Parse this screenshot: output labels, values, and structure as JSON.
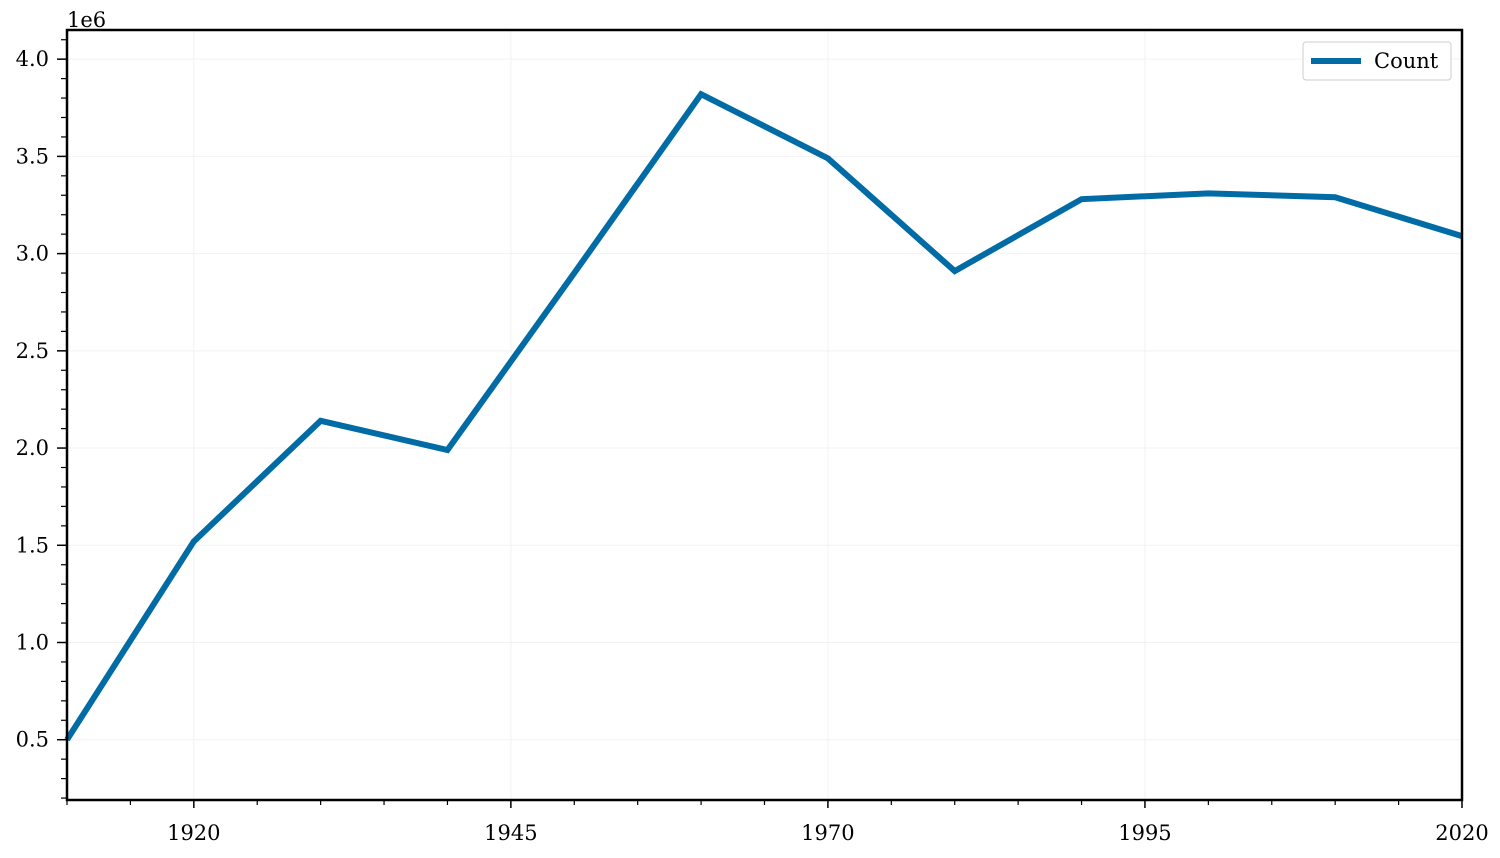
{
  "chart_data": {
    "type": "line",
    "title": "",
    "xlabel": "",
    "ylabel": "",
    "y_offset_label": "1e6",
    "x": [
      1910,
      1920,
      1930,
      1940,
      1950,
      1960,
      1970,
      1980,
      1990,
      2000,
      2010,
      2020
    ],
    "series": [
      {
        "name": "Count",
        "color": "#006ba4",
        "values": [
          0.5,
          1.52,
          2.14,
          1.99,
          2.9,
          3.82,
          3.49,
          2.91,
          3.28,
          3.31,
          3.29,
          3.09
        ]
      }
    ],
    "xlim": [
      1910,
      2020
    ],
    "ylim": [
      0.19,
      4.15
    ],
    "xticks": [
      1920,
      1945,
      1970,
      1995,
      2020
    ],
    "xtick_labels": [
      "1920",
      "1945",
      "1970",
      "1995",
      "2020"
    ],
    "yticks": [
      0.5,
      1.0,
      1.5,
      2.0,
      2.5,
      3.0,
      3.5,
      4.0
    ],
    "ytick_labels": [
      "0.5",
      "1.0",
      "1.5",
      "2.0",
      "2.5",
      "3.0",
      "3.5",
      "4.0"
    ],
    "grid": true,
    "legend": "top-right"
  }
}
